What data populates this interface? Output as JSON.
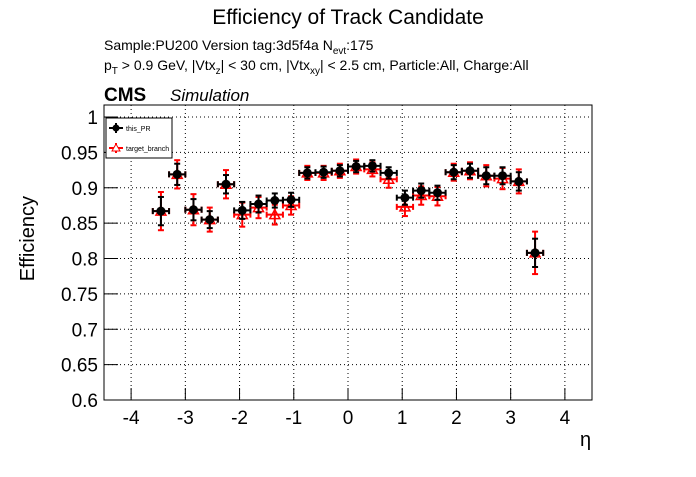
{
  "chart_data": {
    "type": "errorbar",
    "title": "Efficiency of Track Candidate",
    "info_lines": [
      [
        {
          "text": "Sample:PU200   Version tag:3d5f4a  N"
        },
        {
          "text": "evt",
          "sub": true
        },
        {
          "text": ":175"
        }
      ],
      [
        {
          "text": "p"
        },
        {
          "text": "T",
          "sub": true
        },
        {
          "text": " > 0.9 GeV, |Vtx"
        },
        {
          "text": "z",
          "sub": true
        },
        {
          "text": "| < 30 cm, |Vtx"
        },
        {
          "text": "xy",
          "sub": true
        },
        {
          "text": "| < 2.5 cm, Particle:All, Charge:All"
        }
      ]
    ],
    "experiment": "CMS",
    "status": "Simulation",
    "xlabel": "η",
    "ylabel": "Efficiency",
    "x": [
      -3.45,
      -3.15,
      -2.85,
      -2.55,
      -2.25,
      -1.95,
      -1.65,
      -1.35,
      -1.05,
      -0.75,
      -0.45,
      -0.15,
      0.15,
      0.45,
      0.75,
      1.05,
      1.35,
      1.65,
      1.95,
      2.25,
      2.55,
      2.85,
      3.15,
      3.45
    ],
    "xerr": 0.15,
    "series": [
      {
        "name": "this_PR",
        "color": "#000000",
        "marker": "circle",
        "values": [
          0.867,
          0.919,
          0.869,
          0.855,
          0.905,
          0.868,
          0.877,
          0.882,
          0.883,
          0.921,
          0.922,
          0.924,
          0.93,
          0.931,
          0.921,
          0.886,
          0.896,
          0.893,
          0.922,
          0.924,
          0.917,
          0.917,
          0.909,
          0.808
        ],
        "errors": [
          0.02,
          0.015,
          0.015,
          0.012,
          0.013,
          0.012,
          0.012,
          0.01,
          0.01,
          0.008,
          0.008,
          0.008,
          0.008,
          0.008,
          0.008,
          0.01,
          0.01,
          0.01,
          0.01,
          0.01,
          0.012,
          0.012,
          0.013,
          0.02
        ]
      },
      {
        "name": "target_branch",
        "color": "#ff0000",
        "marker": "triangle",
        "values": [
          0.867,
          0.919,
          0.869,
          0.855,
          0.905,
          0.862,
          0.872,
          0.862,
          0.875,
          0.921,
          0.921,
          0.924,
          0.93,
          0.926,
          0.912,
          0.873,
          0.889,
          0.888,
          0.922,
          0.924,
          0.917,
          0.913,
          0.909,
          0.808
        ],
        "errors": [
          0.027,
          0.02,
          0.022,
          0.017,
          0.02,
          0.017,
          0.015,
          0.014,
          0.013,
          0.01,
          0.01,
          0.01,
          0.01,
          0.01,
          0.012,
          0.013,
          0.013,
          0.013,
          0.012,
          0.012,
          0.015,
          0.015,
          0.017,
          0.03
        ]
      }
    ],
    "xlim": [
      -4.5,
      4.5
    ],
    "ylim": [
      0.6,
      1.017
    ],
    "xticks": [
      -4,
      -3,
      -2,
      -1,
      0,
      1,
      2,
      3,
      4
    ],
    "yticks": [
      0.6,
      0.65,
      0.7,
      0.75,
      0.8,
      0.85,
      0.9,
      0.95,
      1
    ],
    "grid": true,
    "legend": "upper-left"
  }
}
